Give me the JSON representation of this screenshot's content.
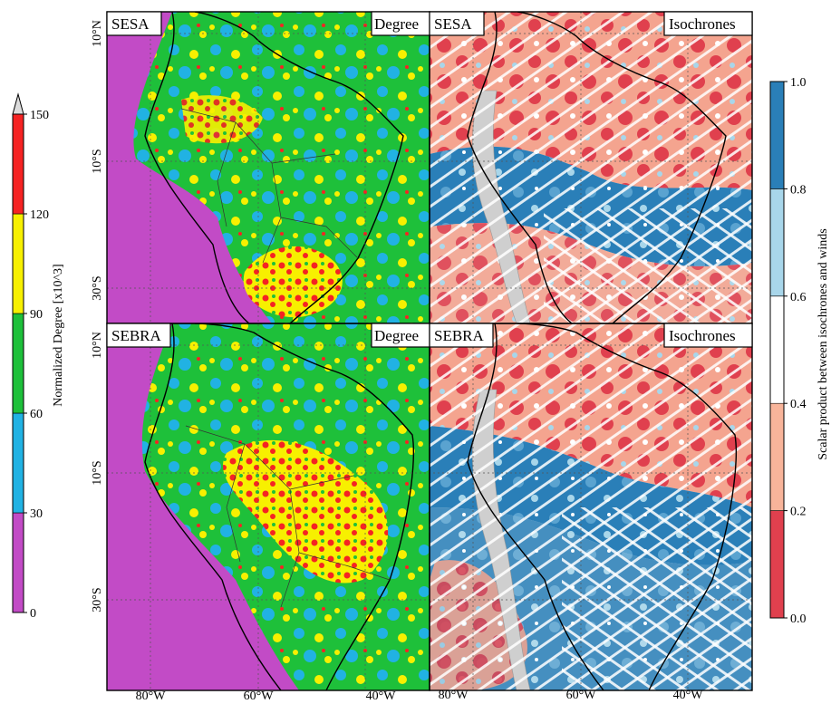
{
  "panels": [
    {
      "region": "SESA",
      "measure": "Degree"
    },
    {
      "region": "SESA",
      "measure": "Isochrones"
    },
    {
      "region": "SEBRA",
      "measure": "Degree"
    },
    {
      "region": "SEBRA",
      "measure": "Isochrones"
    }
  ],
  "lat_labels": [
    "10°N",
    "10°S",
    "30°S"
  ],
  "lon_labels": [
    "80°W",
    "60°W",
    "40°W"
  ],
  "left_colorbar": {
    "label": "Normalized Degree [x10^3]",
    "ticks": [
      "0",
      "30",
      "60",
      "90",
      "120",
      "150"
    ],
    "bins": [
      {
        "from": 0,
        "to": 30,
        "color": "#c24bc6"
      },
      {
        "from": 30,
        "to": 60,
        "color": "#21b2e3"
      },
      {
        "from": 60,
        "to": 90,
        "color": "#1ec03a"
      },
      {
        "from": 90,
        "to": 120,
        "color": "#f7f000"
      },
      {
        "from": 120,
        "to": 150,
        "color": "#f52323"
      }
    ],
    "extend_max": "triangle"
  },
  "right_colorbar": {
    "label": "Scalar product between isochrones and winds",
    "ticks": [
      "0.0",
      "0.2",
      "0.4",
      "0.6",
      "0.8",
      "1.0"
    ],
    "bins": [
      {
        "from": 0.0,
        "to": 0.2,
        "color": "#e0404e"
      },
      {
        "from": 0.2,
        "to": 0.4,
        "color": "#f8b49a"
      },
      {
        "from": 0.4,
        "to": 0.6,
        "color": "#ffffff"
      },
      {
        "from": 0.6,
        "to": 0.8,
        "color": "#a8d6ea"
      },
      {
        "from": 0.8,
        "to": 1.0,
        "color": "#2a7fb8"
      }
    ]
  }
}
